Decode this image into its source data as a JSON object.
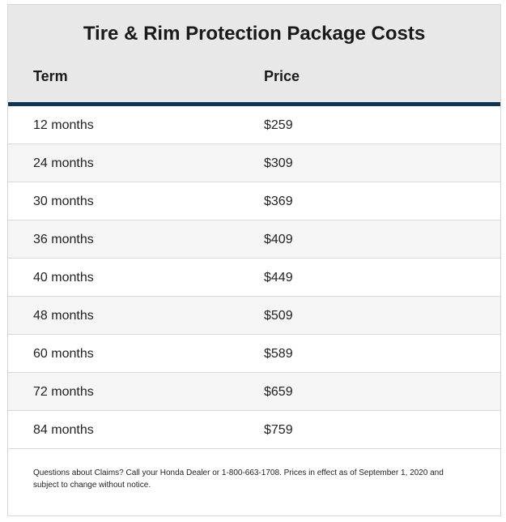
{
  "table": {
    "title": "Tire & Rim Protection Package Costs",
    "headers": {
      "term": "Term",
      "price": "Price"
    },
    "rows": [
      {
        "term": "12 months",
        "price": "$259"
      },
      {
        "term": "24 months",
        "price": "$309"
      },
      {
        "term": "30 months",
        "price": "$369"
      },
      {
        "term": "36 months",
        "price": "$409"
      },
      {
        "term": "40 months",
        "price": "$449"
      },
      {
        "term": "48 months",
        "price": "$509"
      },
      {
        "term": "60 months",
        "price": "$589"
      },
      {
        "term": "72 months",
        "price": "$659"
      },
      {
        "term": "84 months",
        "price": "$759"
      }
    ],
    "footnote": "Questions about Claims? Call your Honda Dealer or 1-800-663-1708. Prices in effect as of September 1, 2020 and subject to change without notice."
  },
  "colors": {
    "header_background": "#e8e8e8",
    "accent_rule": "#0f3552",
    "stripe": "#f5f5f5"
  }
}
